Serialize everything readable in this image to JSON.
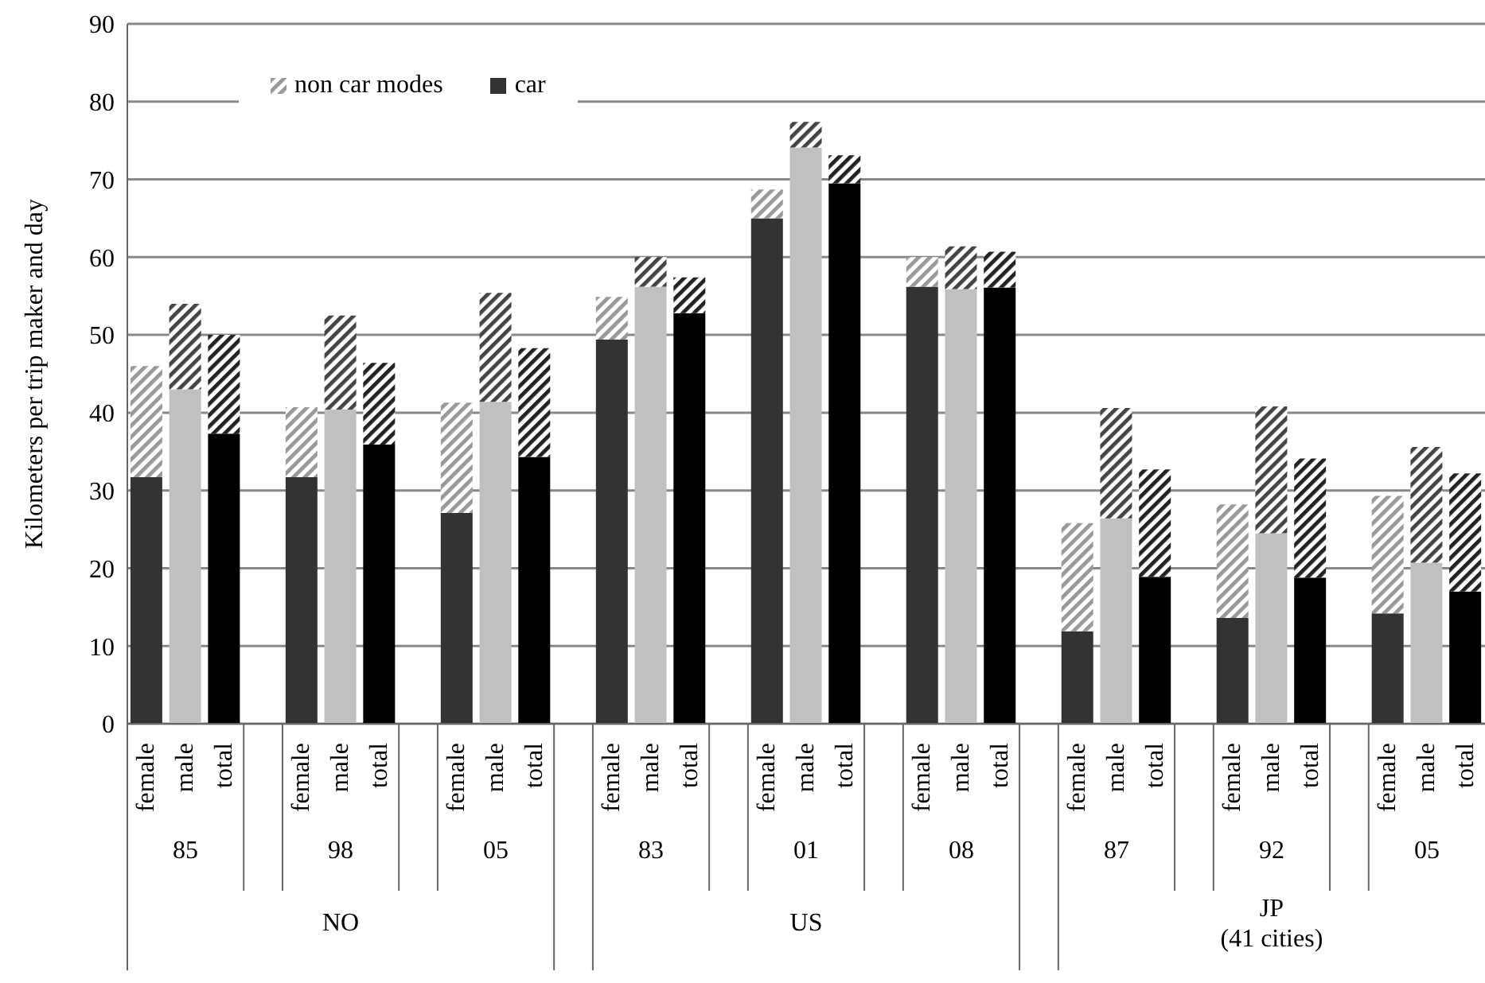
{
  "chart_data": {
    "type": "bar",
    "stacked": true,
    "ylabel": "Kilometers per trip maker and day",
    "categories": [
      "female",
      "male",
      "total",
      null,
      "female",
      "male",
      "total",
      null,
      "female",
      "male",
      "total",
      null,
      "female",
      "male",
      "total",
      null,
      "female",
      "male",
      "total",
      null,
      "female",
      "male",
      "total",
      null,
      "female",
      "male",
      "total",
      null,
      "female",
      "male",
      "total",
      null,
      "female",
      "male",
      "total"
    ],
    "series": [
      {
        "name": "car",
        "colors": [
          "#333333",
          "#c0c0c0",
          "#000000",
          null,
          "#333333",
          "#c0c0c0",
          "#000000",
          null,
          "#333333",
          "#c0c0c0",
          "#000000",
          null,
          "#333333",
          "#c0c0c0",
          "#000000",
          null,
          "#333333",
          "#c0c0c0",
          "#000000",
          null,
          "#333333",
          "#c0c0c0",
          "#000000",
          null,
          "#333333",
          "#c0c0c0",
          "#000000",
          null,
          "#333333",
          "#c0c0c0",
          "#000000",
          null,
          "#333333",
          "#c0c0c0",
          "#000000"
        ],
        "values": [
          31.7,
          43,
          37.3,
          null,
          31.7,
          40.4,
          35.9,
          null,
          27.1,
          41.4,
          34.3,
          null,
          49.4,
          56.2,
          52.8,
          null,
          65,
          74.1,
          69.5,
          null,
          56.2,
          55.9,
          56.1,
          null,
          11.9,
          26.4,
          18.9,
          null,
          13.6,
          24.5,
          18.8,
          null,
          14.2,
          20.7,
          17
        ]
      },
      {
        "name": "non car modes",
        "colors": [
          "#999999",
          "#444444",
          "#222222",
          null,
          "#999999",
          "#444444",
          "#222222",
          null,
          "#999999",
          "#444444",
          "#222222",
          null,
          "#999999",
          "#444444",
          "#222222",
          null,
          "#999999",
          "#444444",
          "#222222",
          null,
          "#999999",
          "#444444",
          "#222222",
          null,
          "#999999",
          "#444444",
          "#222222",
          null,
          "#999999",
          "#444444",
          "#222222",
          null,
          "#999999",
          "#444444",
          "#222222"
        ],
        "values": [
          14.3,
          11,
          12.7,
          null,
          9,
          12.1,
          10.5,
          null,
          14.2,
          14,
          14,
          null,
          5.5,
          3.8,
          4.6,
          null,
          3.7,
          3.3,
          3.6,
          null,
          3.8,
          5.5,
          4.6,
          null,
          13.9,
          14.2,
          13.8,
          null,
          14.6,
          16.3,
          15.3,
          null,
          15.1,
          14.9,
          15.2
        ]
      }
    ],
    "annotations": [
      "85",
      "98",
      "05",
      "83",
      "01",
      "08",
      "87",
      "92",
      "05",
      "NO",
      "US",
      "JP\n(41 cities)"
    ],
    "ylim": [
      0,
      90
    ],
    "yticks": [
      0,
      10,
      20,
      30,
      40,
      50,
      60,
      70,
      80,
      90
    ],
    "grid": "y",
    "legend": "top left"
  }
}
